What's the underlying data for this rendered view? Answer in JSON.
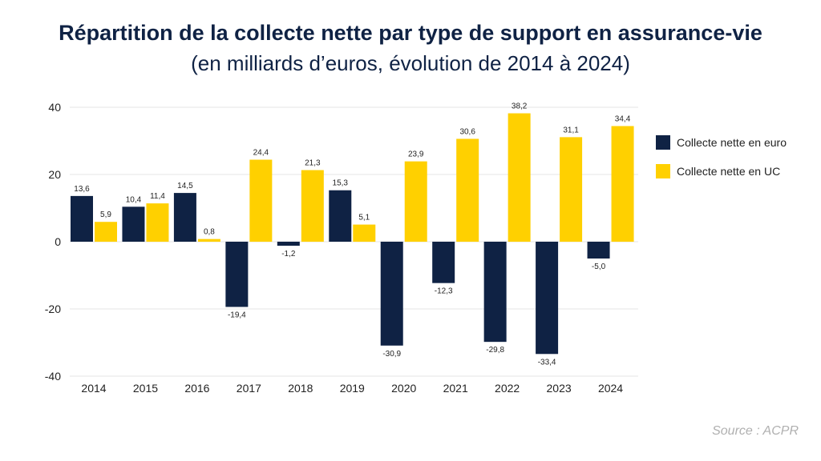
{
  "title": "Répartition de la collecte nette par type de support en assurance-vie",
  "subtitle": "(en milliards d’euros, évolution de 2014 à 2024)",
  "source": "Source : ACPR",
  "colors": {
    "euro": "#0f2244",
    "uc": "#ffd000",
    "grid": "#e6e6e6"
  },
  "chart_data": {
    "type": "bar",
    "title": "Répartition de la collecte nette par type de support en assurance-vie",
    "subtitle": "(en milliards d’euros, évolution de 2014 à 2024)",
    "categories": [
      "2014",
      "2015",
      "2016",
      "2017",
      "2018",
      "2019",
      "2020",
      "2021",
      "2022",
      "2023",
      "2024"
    ],
    "series": [
      {
        "name": "Collecte nette en euro",
        "values": [
          13.6,
          10.4,
          14.5,
          -19.4,
          -1.2,
          15.3,
          -30.9,
          -12.3,
          -29.8,
          -33.4,
          -5.0
        ],
        "labels": [
          "13,6",
          "10,4",
          "14,5",
          "-19,4",
          "-1,2",
          "15,3",
          "-30,9",
          "-12,3",
          "-29,8",
          "-33,4",
          "-5,0"
        ]
      },
      {
        "name": "Collecte nette en UC",
        "values": [
          5.9,
          11.4,
          0.8,
          24.4,
          21.3,
          5.1,
          23.9,
          30.6,
          38.2,
          31.1,
          34.4
        ],
        "labels": [
          "5,9",
          "11,4",
          "0,8",
          "24,4",
          "21,3",
          "5,1",
          "23,9",
          "30,6",
          "38,2",
          "31,1",
          "34,4"
        ]
      }
    ],
    "yticks": [
      "40",
      "20",
      "0",
      "-20",
      "-40"
    ],
    "ylim": [
      -40,
      40
    ],
    "xlabel": "",
    "ylabel": "",
    "grid": true,
    "legend": "right"
  }
}
